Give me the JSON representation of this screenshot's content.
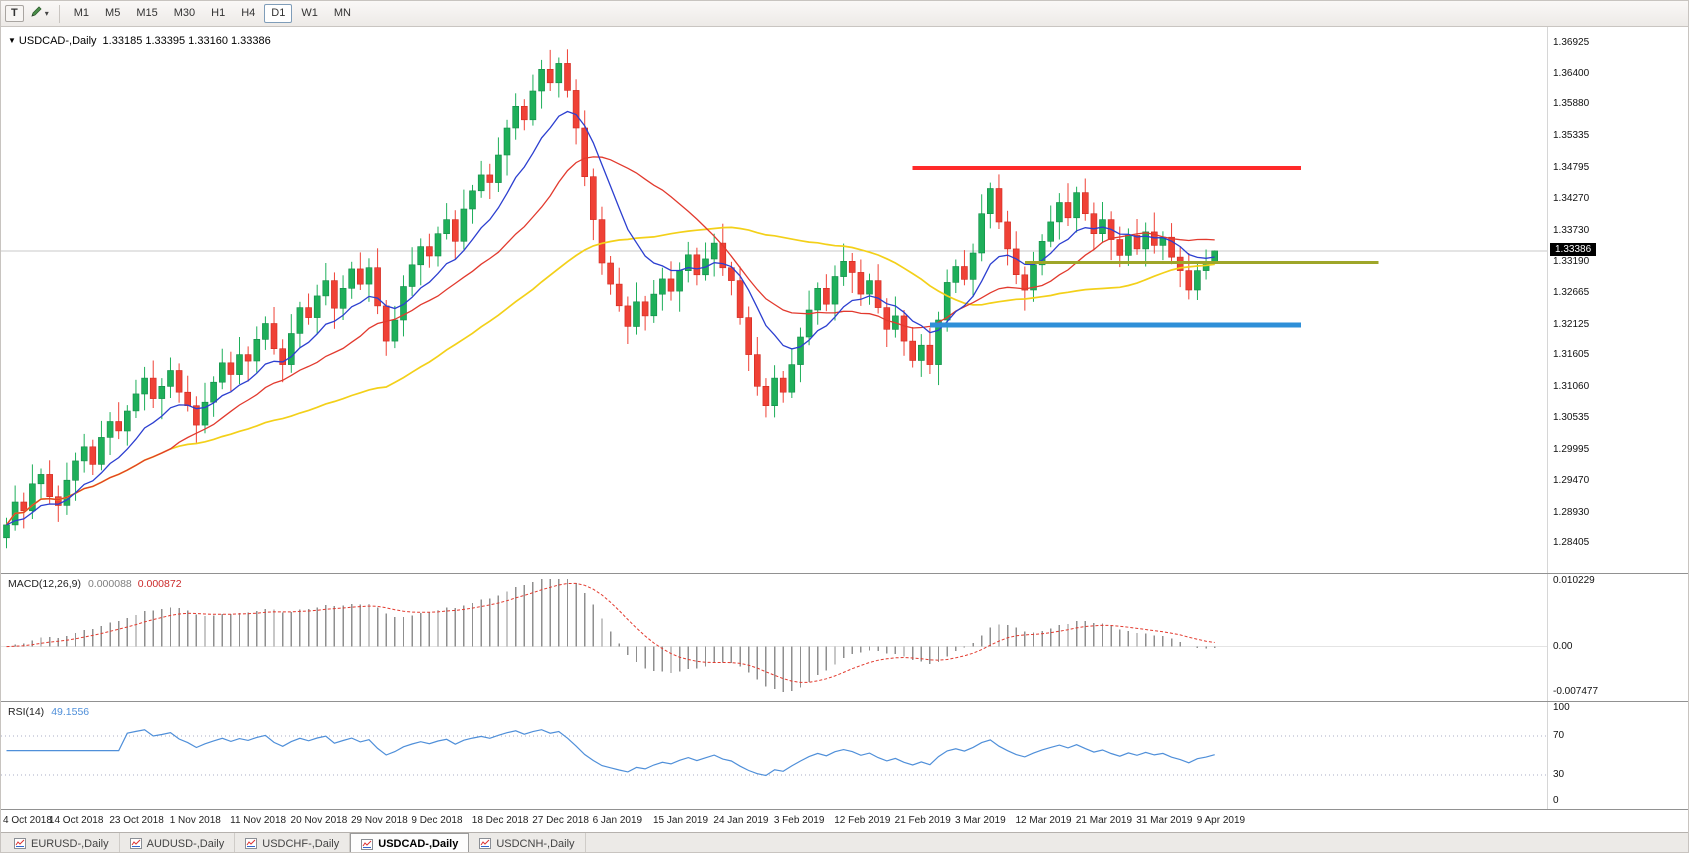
{
  "toolbar": {
    "tool_button": "T",
    "timeframes": [
      "M1",
      "M5",
      "M15",
      "M30",
      "H1",
      "H4",
      "D1",
      "W1",
      "MN"
    ],
    "active_timeframe": "D1"
  },
  "chart": {
    "marker": "▼",
    "symbol_period": "USDCAD-,Daily",
    "ohlc": "1.33185 1.33395 1.33160 1.33386",
    "current_price_label": "1.33386"
  },
  "macd": {
    "label": "MACD(12,26,9)",
    "value_main": "0.000088",
    "value_signal": "0.000872",
    "axis": [
      "0.010229",
      "0.00",
      "-0.007477"
    ],
    "range": {
      "max": 0.010229,
      "min": -0.007477
    }
  },
  "rsi": {
    "label": "RSI(14)",
    "value": "49.1556",
    "axis": [
      "100",
      "70",
      "30",
      "0"
    ],
    "levels": [
      70,
      30
    ]
  },
  "tabbar": {
    "tabs": [
      {
        "label": "EURUSD-,Daily"
      },
      {
        "label": "AUDUSD-,Daily"
      },
      {
        "label": "USDCHF-,Daily"
      },
      {
        "label": "USDCAD-,Daily"
      },
      {
        "label": "USDCNH-,Daily"
      }
    ],
    "active_index": 3
  },
  "chart_data": {
    "type": "candlestick",
    "symbol": "USDCAD",
    "period": "Daily",
    "title": "USDCAD-,Daily",
    "x_range": [
      "4 Oct 2018",
      "9 Apr 2019"
    ],
    "current_price": 1.33386,
    "price_range": {
      "min": 1.279,
      "max": 1.372
    },
    "price_axis_labels": [
      "1.36925",
      "1.36400",
      "1.35880",
      "1.35335",
      "1.34795",
      "1.34270",
      "1.33730",
      "1.33190",
      "1.32665",
      "1.32125",
      "1.31605",
      "1.31060",
      "1.30535",
      "1.29995",
      "1.29470",
      "1.28930",
      "1.28405"
    ],
    "date_labels": [
      "4 Oct 2018",
      "14 Oct 2018",
      "23 Oct 2018",
      "1 Nov 2018",
      "11 Nov 2018",
      "20 Nov 2018",
      "29 Nov 2018",
      "9 Dec 2018",
      "18 Dec 2018",
      "27 Dec 2018",
      "6 Jan 2019",
      "15 Jan 2019",
      "24 Jan 2019",
      "3 Feb 2019",
      "12 Feb 2019",
      "21 Feb 2019",
      "3 Mar 2019",
      "12 Mar 2019",
      "21 Mar 2019",
      "31 Mar 2019",
      "9 Apr 2019"
    ],
    "label_every_n_candles": 7,
    "moving_averages": [
      {
        "name": "slow",
        "type": "sma",
        "period": 45,
        "color": "#f3d019"
      },
      {
        "name": "medium",
        "type": "sma",
        "period": 20,
        "color": "#e23a2e"
      },
      {
        "name": "fast",
        "type": "ema",
        "period": 10,
        "color": "#2c3fd0"
      }
    ],
    "hlines": [
      {
        "name": "resistance-line-red",
        "price": 1.34795,
        "color": "#ff2a2a",
        "width": 4,
        "from_index": 105,
        "to_index": 150
      },
      {
        "name": "pivot-line-olive",
        "price": 1.3319,
        "color": "#9ea629",
        "width": 3,
        "from_index": 118,
        "to_index": 159
      },
      {
        "name": "support-line-blue",
        "price": 1.32125,
        "color": "#2e8fd8",
        "width": 5,
        "from_index": 107,
        "to_index": 150
      }
    ],
    "indicators": {
      "macd": {
        "fast": 12,
        "slow": 26,
        "signal": 9
      },
      "rsi": {
        "period": 14
      }
    },
    "candles": [
      [
        1.285,
        1.2884,
        1.2832,
        1.2872
      ],
      [
        1.2872,
        1.2939,
        1.2862,
        1.2911
      ],
      [
        1.2911,
        1.2927,
        1.2866,
        1.2896
      ],
      [
        1.2896,
        1.2975,
        1.2882,
        1.2942
      ],
      [
        1.2942,
        1.2968,
        1.2917,
        1.2958
      ],
      [
        1.2958,
        1.2982,
        1.2908,
        1.292
      ],
      [
        1.292,
        1.2939,
        1.2877,
        1.2905
      ],
      [
        1.2905,
        1.2978,
        1.2889,
        1.2948
      ],
      [
        1.2948,
        1.2995,
        1.2913,
        1.2981
      ],
      [
        1.2981,
        1.3027,
        1.2961,
        1.3005
      ],
      [
        1.3005,
        1.3017,
        1.2957,
        1.2975
      ],
      [
        1.2975,
        1.3049,
        1.2965,
        1.3021
      ],
      [
        1.3021,
        1.3064,
        1.2991,
        1.3048
      ],
      [
        1.3048,
        1.3081,
        1.3018,
        1.3032
      ],
      [
        1.3032,
        1.3076,
        1.3007,
        1.3066
      ],
      [
        1.3066,
        1.3119,
        1.3054,
        1.3095
      ],
      [
        1.3095,
        1.3141,
        1.3067,
        1.3122
      ],
      [
        1.3122,
        1.3152,
        1.3071,
        1.3087
      ],
      [
        1.3087,
        1.3122,
        1.3052,
        1.3108
      ],
      [
        1.3108,
        1.3157,
        1.3088,
        1.3135
      ],
      [
        1.3135,
        1.3147,
        1.308,
        1.3098
      ],
      [
        1.3098,
        1.3126,
        1.3065,
        1.3075
      ],
      [
        1.3075,
        1.3091,
        1.3012,
        1.3042
      ],
      [
        1.3042,
        1.3114,
        1.3028,
        1.3081
      ],
      [
        1.3081,
        1.3125,
        1.3056,
        1.3115
      ],
      [
        1.3115,
        1.3172,
        1.3103,
        1.3148
      ],
      [
        1.3148,
        1.3167,
        1.31,
        1.3128
      ],
      [
        1.3128,
        1.3192,
        1.3112,
        1.3162
      ],
      [
        1.3162,
        1.3176,
        1.3116,
        1.3151
      ],
      [
        1.3151,
        1.321,
        1.3131,
        1.3188
      ],
      [
        1.3188,
        1.3227,
        1.317,
        1.3215
      ],
      [
        1.3215,
        1.3243,
        1.3162,
        1.3172
      ],
      [
        1.3172,
        1.3188,
        1.3115,
        1.3145
      ],
      [
        1.3145,
        1.3231,
        1.3131,
        1.3198
      ],
      [
        1.3198,
        1.3252,
        1.3173,
        1.3242
      ],
      [
        1.3242,
        1.3266,
        1.3213,
        1.3225
      ],
      [
        1.3225,
        1.3281,
        1.3197,
        1.3262
      ],
      [
        1.3262,
        1.3318,
        1.3246,
        1.3288
      ],
      [
        1.3288,
        1.3302,
        1.3206,
        1.3241
      ],
      [
        1.3241,
        1.3297,
        1.3221,
        1.3275
      ],
      [
        1.3275,
        1.332,
        1.3257,
        1.3308
      ],
      [
        1.3308,
        1.3336,
        1.3272,
        1.3282
      ],
      [
        1.3282,
        1.3326,
        1.3252,
        1.331
      ],
      [
        1.331,
        1.3343,
        1.3231,
        1.3245
      ],
      [
        1.3245,
        1.3255,
        1.316,
        1.3185
      ],
      [
        1.3185,
        1.3245,
        1.3173,
        1.3221
      ],
      [
        1.3221,
        1.3297,
        1.3193,
        1.3278
      ],
      [
        1.3278,
        1.3345,
        1.3262,
        1.3315
      ],
      [
        1.3315,
        1.336,
        1.328,
        1.3346
      ],
      [
        1.3346,
        1.3368,
        1.331,
        1.333
      ],
      [
        1.333,
        1.338,
        1.3312,
        1.3368
      ],
      [
        1.3368,
        1.342,
        1.3358,
        1.3392
      ],
      [
        1.3392,
        1.3408,
        1.3325,
        1.3355
      ],
      [
        1.3355,
        1.3443,
        1.3341,
        1.341
      ],
      [
        1.341,
        1.3451,
        1.3385,
        1.3441
      ],
      [
        1.3441,
        1.3492,
        1.3429,
        1.3468
      ],
      [
        1.3468,
        1.3487,
        1.3427,
        1.3455
      ],
      [
        1.3455,
        1.3532,
        1.3439,
        1.3502
      ],
      [
        1.3502,
        1.3562,
        1.3467,
        1.3548
      ],
      [
        1.3548,
        1.3607,
        1.3528,
        1.3585
      ],
      [
        1.3585,
        1.3597,
        1.3544,
        1.3562
      ],
      [
        1.3562,
        1.3639,
        1.3552,
        1.3611
      ],
      [
        1.3611,
        1.3664,
        1.3581,
        1.3648
      ],
      [
        1.3648,
        1.3681,
        1.3611,
        1.3625
      ],
      [
        1.3625,
        1.3668,
        1.36,
        1.3658
      ],
      [
        1.3658,
        1.3682,
        1.36,
        1.3612
      ],
      [
        1.3612,
        1.3631,
        1.352,
        1.3548
      ],
      [
        1.3548,
        1.3578,
        1.3449,
        1.3465
      ],
      [
        1.3465,
        1.3479,
        1.3357,
        1.3392
      ],
      [
        1.3392,
        1.3414,
        1.3298,
        1.3318
      ],
      [
        1.3318,
        1.333,
        1.3264,
        1.3282
      ],
      [
        1.3282,
        1.331,
        1.3235,
        1.3245
      ],
      [
        1.3245,
        1.3261,
        1.318,
        1.321
      ],
      [
        1.321,
        1.3285,
        1.3196,
        1.3252
      ],
      [
        1.3252,
        1.3262,
        1.3203,
        1.3228
      ],
      [
        1.3228,
        1.3289,
        1.3216,
        1.3265
      ],
      [
        1.3265,
        1.331,
        1.3237,
        1.3291
      ],
      [
        1.3291,
        1.3321,
        1.3254,
        1.327
      ],
      [
        1.327,
        1.3319,
        1.3235,
        1.3305
      ],
      [
        1.3305,
        1.3354,
        1.3285,
        1.3332
      ],
      [
        1.3332,
        1.3344,
        1.328,
        1.3298
      ],
      [
        1.3298,
        1.3353,
        1.3288,
        1.3325
      ],
      [
        1.3325,
        1.3368,
        1.3295,
        1.3352
      ],
      [
        1.3352,
        1.3385,
        1.3296,
        1.331
      ],
      [
        1.331,
        1.332,
        1.3263,
        1.3288
      ],
      [
        1.3288,
        1.3312,
        1.3213,
        1.3225
      ],
      [
        1.3225,
        1.3244,
        1.3134,
        1.3162
      ],
      [
        1.3162,
        1.3192,
        1.3092,
        1.3108
      ],
      [
        1.3108,
        1.3122,
        1.3055,
        1.3075
      ],
      [
        1.3075,
        1.3144,
        1.3055,
        1.3122
      ],
      [
        1.3122,
        1.3134,
        1.308,
        1.3098
      ],
      [
        1.3098,
        1.3173,
        1.3088,
        1.3145
      ],
      [
        1.3145,
        1.3208,
        1.3115,
        1.3192
      ],
      [
        1.3192,
        1.3271,
        1.3178,
        1.3238
      ],
      [
        1.3238,
        1.3285,
        1.3213,
        1.3275
      ],
      [
        1.3275,
        1.3299,
        1.3236,
        1.3248
      ],
      [
        1.3248,
        1.3314,
        1.322,
        1.3295
      ],
      [
        1.3295,
        1.3351,
        1.3279,
        1.3321
      ],
      [
        1.3321,
        1.3335,
        1.3267,
        1.3302
      ],
      [
        1.3302,
        1.3324,
        1.3245,
        1.3265
      ],
      [
        1.3265,
        1.33,
        1.3247,
        1.3288
      ],
      [
        1.3288,
        1.3316,
        1.3232,
        1.3242
      ],
      [
        1.3242,
        1.3258,
        1.3175,
        1.3205
      ],
      [
        1.3205,
        1.3261,
        1.3191,
        1.3228
      ],
      [
        1.3228,
        1.3238,
        1.316,
        1.3185
      ],
      [
        1.3185,
        1.3209,
        1.314,
        1.3152
      ],
      [
        1.3152,
        1.3197,
        1.3124,
        1.3178
      ],
      [
        1.3178,
        1.3208,
        1.3129,
        1.3145
      ],
      [
        1.3145,
        1.3235,
        1.311,
        1.3221
      ],
      [
        1.3221,
        1.3307,
        1.3201,
        1.3285
      ],
      [
        1.3285,
        1.3324,
        1.3267,
        1.3312
      ],
      [
        1.3312,
        1.334,
        1.328,
        1.329
      ],
      [
        1.329,
        1.3351,
        1.326,
        1.3335
      ],
      [
        1.3335,
        1.3435,
        1.3321,
        1.3402
      ],
      [
        1.3402,
        1.3455,
        1.3377,
        1.3445
      ],
      [
        1.3445,
        1.3469,
        1.3376,
        1.3388
      ],
      [
        1.3388,
        1.3407,
        1.3314,
        1.3342
      ],
      [
        1.3342,
        1.3372,
        1.3282,
        1.3298
      ],
      [
        1.3298,
        1.3312,
        1.3237,
        1.3272
      ],
      [
        1.3272,
        1.3337,
        1.3252,
        1.3315
      ],
      [
        1.3315,
        1.3367,
        1.3297,
        1.3355
      ],
      [
        1.3355,
        1.3416,
        1.3345,
        1.3388
      ],
      [
        1.3388,
        1.3437,
        1.3358,
        1.3421
      ],
      [
        1.3421,
        1.3454,
        1.3381,
        1.3395
      ],
      [
        1.3395,
        1.3448,
        1.337,
        1.3438
      ],
      [
        1.3438,
        1.3462,
        1.339,
        1.3402
      ],
      [
        1.3402,
        1.3421,
        1.334,
        1.3368
      ],
      [
        1.3368,
        1.3422,
        1.3352,
        1.3392
      ],
      [
        1.3392,
        1.3406,
        1.3323,
        1.3358
      ],
      [
        1.3358,
        1.338,
        1.3311,
        1.3331
      ],
      [
        1.3331,
        1.3377,
        1.3313,
        1.3365
      ],
      [
        1.3365,
        1.3393,
        1.3332,
        1.3342
      ],
      [
        1.3342,
        1.3387,
        1.3312,
        1.3371
      ],
      [
        1.3371,
        1.3404,
        1.3334,
        1.3348
      ],
      [
        1.3348,
        1.3372,
        1.3323,
        1.3362
      ],
      [
        1.3362,
        1.3386,
        1.3316,
        1.3328
      ],
      [
        1.3328,
        1.3347,
        1.3277,
        1.3305
      ],
      [
        1.3305,
        1.3335,
        1.3256,
        1.3272
      ],
      [
        1.3272,
        1.3319,
        1.3255,
        1.3305
      ],
      [
        1.3305,
        1.3341,
        1.329,
        1.3319
      ],
      [
        1.33185,
        1.33395,
        1.3316,
        1.33386
      ]
    ]
  }
}
